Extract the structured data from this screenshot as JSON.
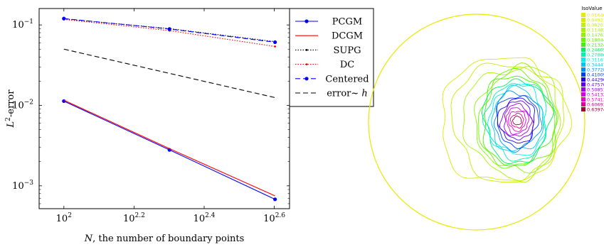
{
  "chart_data": [
    {
      "type": "line",
      "xscale": "log",
      "yscale": "log",
      "xlabel_var": "N",
      "xlabel_rest": ", the number of boundary points",
      "ylabel_base": "L",
      "ylabel_sup": "2",
      "ylabel_rest": "-error",
      "xlim": [
        85,
        440
      ],
      "ylim": [
        0.00052,
        0.16
      ],
      "xticks": [
        {
          "value": 100,
          "base": "10",
          "exp": "2"
        },
        {
          "value": 158.49,
          "base": "10",
          "exp": "2.2"
        },
        {
          "value": 251.19,
          "base": "10",
          "exp": "2.4"
        },
        {
          "value": 398.11,
          "base": "10",
          "exp": "2.6"
        }
      ],
      "yticks": [
        {
          "value": 0.001,
          "base": "10",
          "exp": "−3"
        },
        {
          "value": 0.01,
          "base": "10",
          "exp": "−2"
        },
        {
          "value": 0.1,
          "base": "10",
          "exp": "−1"
        }
      ],
      "series": [
        {
          "name": "PCGM",
          "color": "#0000ff",
          "style": "solid",
          "marker": "dot",
          "x": [
            100,
            200,
            400
          ],
          "y": [
            0.0113,
            0.0028,
            0.00068
          ]
        },
        {
          "name": "DCGM",
          "color": "#ff0000",
          "style": "solid",
          "marker": "none",
          "x": [
            100,
            200,
            400
          ],
          "y": [
            0.0116,
            0.0029,
            0.00075
          ]
        },
        {
          "name": "SUPG",
          "color": "#000000",
          "style": "dotted",
          "marker": "small",
          "x": [
            100,
            200,
            400
          ],
          "y": [
            0.119,
            0.09,
            0.062
          ]
        },
        {
          "name": "DC",
          "color": "#ff0000",
          "style": "dotted",
          "marker": "small",
          "x": [
            100,
            200,
            400
          ],
          "y": [
            0.117,
            0.085,
            0.054
          ]
        },
        {
          "name": "Centered",
          "color": "#0000ff",
          "style": "dashed",
          "marker": "dot",
          "x": [
            100,
            200,
            400
          ],
          "y": [
            0.12,
            0.089,
            0.061
          ]
        },
        {
          "name": "error~ h",
          "name_main": "error~ ",
          "name_var": "h",
          "color": "#000000",
          "style": "dashed",
          "marker": "none",
          "x": [
            100,
            400
          ],
          "y": [
            0.05,
            0.0125
          ]
        }
      ]
    },
    {
      "type": "contour",
      "legend_title": "IsoValue",
      "levels": [
        {
          "value": "0.0164037",
          "color": "#e8e800"
        },
        {
          "value": "0.0492112",
          "color": "#d6ec00"
        },
        {
          "value": "0.0820186",
          "color": "#c2f000"
        },
        {
          "value": "0.114826",
          "color": "#a8f200"
        },
        {
          "value": "0.147634",
          "color": "#8cf400"
        },
        {
          "value": "0.180441",
          "color": "#6cf400"
        },
        {
          "value": "0.213249",
          "color": "#44f400"
        },
        {
          "value": "0.246056",
          "color": "#00f060"
        },
        {
          "value": "0.278864",
          "color": "#00f0b0"
        },
        {
          "value": "0.311671",
          "color": "#00f0f0"
        },
        {
          "value": "0.344479",
          "color": "#00c8f0"
        },
        {
          "value": "0.377286",
          "color": "#0090f0"
        },
        {
          "value": "0.410094",
          "color": "#0040f0"
        },
        {
          "value": "0.442901",
          "color": "#2000f0"
        },
        {
          "value": "0.475709",
          "color": "#6000f0"
        },
        {
          "value": "0.508516",
          "color": "#a000f0"
        },
        {
          "value": "0.541324",
          "color": "#d800e8"
        },
        {
          "value": "0.574131",
          "color": "#f000c8"
        },
        {
          "value": "0.606939",
          "color": "#e00090"
        },
        {
          "value": "0.639746",
          "color": "#a00040"
        }
      ]
    }
  ]
}
